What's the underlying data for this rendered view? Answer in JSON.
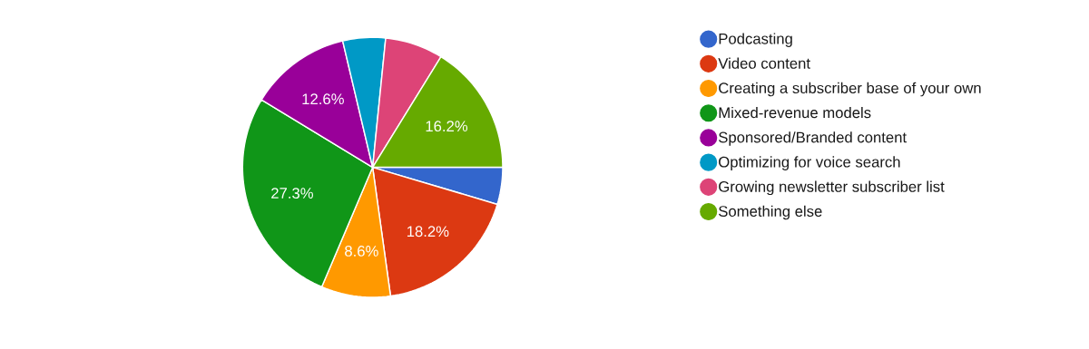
{
  "chart_data": {
    "type": "pie",
    "categories": [
      "Podcasting",
      "Video content",
      "Creating a subscriber base of your own",
      "Mixed-revenue models",
      "Sponsored/Branded content",
      "Optimizing for voice search",
      "Growing newsletter subscriber list",
      "Something else"
    ],
    "values": [
      4.6,
      18.2,
      8.6,
      27.3,
      12.6,
      5.3,
      7.2,
      16.2
    ],
    "colors": [
      "#3366cc",
      "#dc3912",
      "#ff9900",
      "#109618",
      "#990099",
      "#0099c6",
      "#dd4477",
      "#66aa00"
    ],
    "value_labels": [
      null,
      "18.2%",
      "8.6%",
      "27.3%",
      "12.6%",
      null,
      null,
      "16.2%"
    ],
    "legend": "right"
  }
}
